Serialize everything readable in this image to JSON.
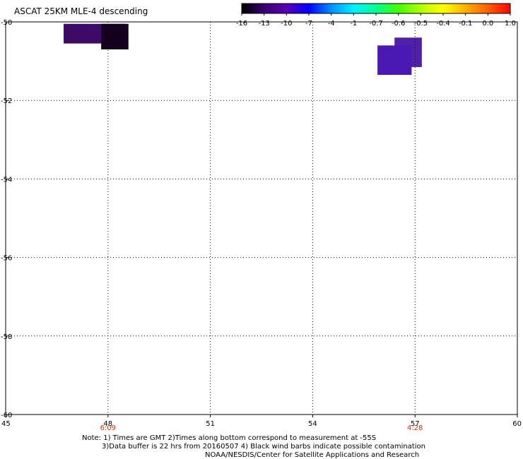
{
  "title": "ASCAT 25KM MLE-4 descending",
  "colorbar": {
    "labels": [
      "-16",
      "-13",
      "-10",
      "-7",
      "-4",
      "-1",
      "-0.7",
      "-0.6",
      "-0.5",
      "-0.4",
      "-0.1",
      "0.0",
      "1.0"
    ],
    "colors": [
      "#000000",
      "#3a0070",
      "#5a00b4",
      "#0000ff",
      "#0090ff",
      "#00f0ff",
      "#00ff90",
      "#40ff00",
      "#b0ff00",
      "#ffff00",
      "#ffb000",
      "#ff6000",
      "#ff0000"
    ]
  },
  "map": {
    "x_axis": {
      "ticks": [
        "45",
        "48",
        "51",
        "54",
        "57",
        "60"
      ],
      "range": [
        45,
        60
      ]
    },
    "y_axis": {
      "ticks": [
        "-50",
        "-52",
        "-54",
        "-56",
        "-58",
        "-60"
      ],
      "range": [
        -60,
        -50
      ]
    },
    "time_labels": [
      {
        "lon": 48,
        "text": "6:09"
      },
      {
        "lon": 57,
        "text": "4:28"
      }
    ],
    "time_color": "#d03000",
    "cells": [
      {
        "lon0": 46.7,
        "lon1": 48.5,
        "lat0": -50.55,
        "lat1": -50.05,
        "color": "#3e0a68"
      },
      {
        "lon0": 47.8,
        "lon1": 48.6,
        "lat0": -50.7,
        "lat1": -50.05,
        "color": "#12001e"
      },
      {
        "lon0": 56.4,
        "lon1": 57.2,
        "lat0": -51.15,
        "lat1": -50.4,
        "color": "#5020a8"
      },
      {
        "lon0": 55.9,
        "lon1": 56.9,
        "lat0": -51.35,
        "lat1": -50.6,
        "color": "#4c18b4"
      }
    ]
  },
  "notes": {
    "line1": "Note: 1) Times are GMT 2)Times along bottom correspond to measurement at -55S",
    "line2": "3)Data buffer is 22 hrs from 20160507 4) Black wind barbs indicate possible contamination",
    "line3": "NOAA/NESDIS/Center for Satellite Applications and Research"
  }
}
